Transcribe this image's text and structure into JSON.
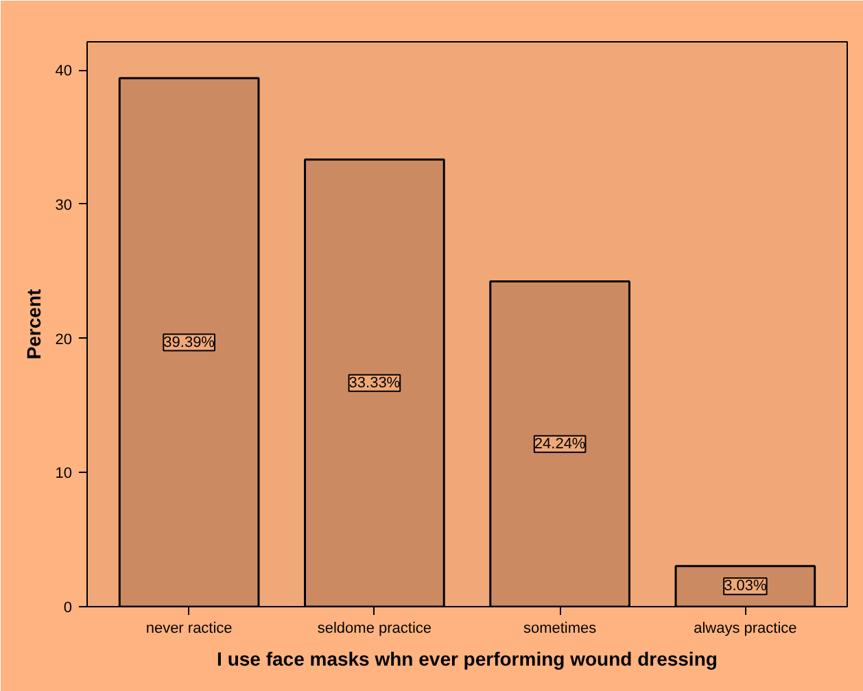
{
  "chart_data": {
    "type": "bar",
    "xlabel": "I use face masks whn ever performing wound dressing",
    "ylabel": "Percent",
    "categories": [
      "never ractice",
      "seldome practice",
      "sometimes",
      "always practice"
    ],
    "values": [
      39.39,
      33.33,
      24.24,
      3.03
    ],
    "value_labels": [
      "39.39%",
      "33.33%",
      "24.24%",
      "3.03%"
    ],
    "color": "#cc8a63",
    "ylim": [
      0,
      42.1
    ],
    "yticks": [
      0,
      10,
      20,
      30,
      40
    ],
    "grid": false
  }
}
